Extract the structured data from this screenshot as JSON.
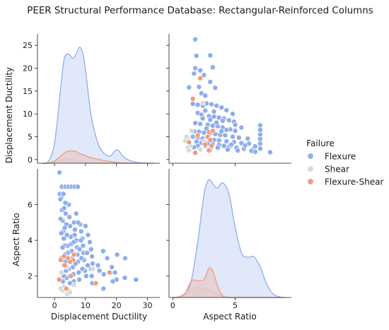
{
  "chart_data": {
    "type": "scatter",
    "title": "PEER Structural Performance Database: Rectangular-Reinforced Columns",
    "variables": [
      "Displacement Ductility",
      "Aspect Ratio"
    ],
    "legend": {
      "title": "Failure",
      "placement": "right",
      "entries": [
        {
          "label": "Flexure",
          "color": "#8fadee"
        },
        {
          "label": "Shear",
          "color": "#d9d9d9"
        },
        {
          "label": "Flexure-Shear",
          "color": "#ef9c7d"
        }
      ]
    },
    "axes": {
      "ductility": {
        "range": [
          -5.5,
          34
        ],
        "ticks": [
          0,
          10,
          20,
          30
        ],
        "tick_labels": [
          "0",
          "10",
          "20",
          "30"
        ],
        "diag_ticks": [
          0,
          5,
          10,
          15,
          20,
          25
        ],
        "diag_tick_labels": [
          "0",
          "5",
          "10",
          "15",
          "20",
          "25"
        ]
      },
      "aspect": {
        "range": [
          -0.3,
          9.5
        ],
        "ticks": [
          0,
          5
        ],
        "tick_labels": [
          "0",
          "5"
        ],
        "y_range": [
          0.8,
          8.0
        ],
        "y_ticks": [
          2,
          4,
          6
        ],
        "y_tick_labels": [
          "2",
          "4",
          "6"
        ]
      }
    },
    "kde": {
      "ductility": {
        "x": [
          -4,
          -2,
          0,
          2,
          3,
          4,
          5,
          6,
          7,
          8,
          9,
          10,
          11,
          12,
          14,
          16,
          18,
          19,
          20,
          21,
          22,
          24,
          26,
          28,
          30,
          32
        ],
        "flexure": [
          0.0,
          0.4,
          4.5,
          17,
          23,
          24.5,
          24.2,
          23.5,
          24.5,
          26,
          25,
          21,
          15,
          10,
          4.5,
          2.2,
          1.6,
          2.4,
          3.0,
          2.6,
          1.6,
          0.7,
          0.25,
          0.08,
          0.02,
          0.0
        ],
        "flexure_shear": [
          0.0,
          0.05,
          0.5,
          1.6,
          2.2,
          2.6,
          2.8,
          2.7,
          2.6,
          2.2,
          2.0,
          1.7,
          1.4,
          1.2,
          0.9,
          0.6,
          0.4,
          0.3,
          0.2,
          0.12,
          0.05,
          0.02,
          0.0,
          0.0,
          0.0,
          0.0
        ],
        "shear": [
          0.0,
          0.05,
          0.3,
          0.7,
          0.9,
          1.0,
          1.0,
          0.9,
          0.7,
          0.5,
          0.3,
          0.2,
          0.1,
          0.05,
          0.0,
          0.0,
          0.0,
          0.0,
          0.0,
          0.0,
          0.0,
          0.0,
          0.0,
          0.0,
          0.0,
          0.0
        ]
      },
      "aspect": {
        "x": [
          0.0,
          0.5,
          1.0,
          1.5,
          2.0,
          2.5,
          2.8,
          3.0,
          3.3,
          3.6,
          4.0,
          4.5,
          5.0,
          5.5,
          6.0,
          6.5,
          7.0,
          7.5,
          8.0,
          8.5,
          9.0
        ],
        "flexure": [
          0.0,
          0.06,
          0.7,
          3.2,
          10.0,
          18.5,
          20.8,
          21.0,
          20.0,
          19.6,
          20.5,
          18.5,
          12.5,
          8.0,
          7.2,
          7.3,
          5.5,
          2.5,
          0.7,
          0.15,
          0.0
        ],
        "flexure_shear": [
          0.0,
          0.05,
          0.8,
          3.0,
          3.0,
          3.2,
          4.8,
          5.3,
          4.2,
          2.0,
          0.3,
          0.0,
          0.0,
          0.0,
          0.0,
          0.0,
          0.0,
          0.0,
          0.0,
          0.0,
          0.0
        ],
        "shear": [
          0.0,
          0.2,
          0.8,
          1.6,
          1.8,
          1.6,
          1.4,
          1.2,
          0.9,
          0.5,
          0.2,
          0.05,
          0.0,
          0.0,
          0.0,
          0.0,
          0.0,
          0.0,
          0.0,
          0.0,
          0.0
        ]
      }
    },
    "points": {
      "Flexure": [
        [
          1.8,
          26.3
        ],
        [
          1.9,
          22.7
        ],
        [
          3.0,
          22.8
        ],
        [
          1.8,
          20.0
        ],
        [
          3.2,
          20.2
        ],
        [
          1.7,
          18.8
        ],
        [
          2.2,
          19.5
        ],
        [
          2.5,
          18.5
        ],
        [
          1.3,
          15.8
        ],
        [
          2.1,
          15.9
        ],
        [
          2.3,
          14.5
        ],
        [
          2.6,
          14.0
        ],
        [
          3.0,
          17.0
        ],
        [
          3.4,
          15.7
        ],
        [
          1.6,
          12.2
        ],
        [
          2.0,
          12.0
        ],
        [
          2.4,
          11.8
        ],
        [
          2.7,
          12.3
        ],
        [
          3.1,
          12.1
        ],
        [
          3.5,
          11.8
        ],
        [
          3.9,
          11.4
        ],
        [
          4.3,
          10.8
        ],
        [
          4.8,
          10.0
        ],
        [
          5.5,
          7.0
        ],
        [
          2.0,
          10.2
        ],
        [
          2.3,
          9.8
        ],
        [
          2.9,
          9.5
        ],
        [
          3.3,
          9.4
        ],
        [
          3.7,
          9.2
        ],
        [
          4.1,
          9.0
        ],
        [
          4.5,
          8.6
        ],
        [
          4.9,
          8.3
        ],
        [
          1.8,
          8.0
        ],
        [
          2.2,
          7.8
        ],
        [
          2.8,
          7.6
        ],
        [
          3.2,
          7.4
        ],
        [
          3.6,
          7.3
        ],
        [
          4.0,
          7.0
        ],
        [
          4.6,
          6.6
        ],
        [
          5.0,
          6.3
        ],
        [
          1.7,
          6.2
        ],
        [
          2.1,
          6.1
        ],
        [
          2.5,
          5.9
        ],
        [
          3.0,
          5.8
        ],
        [
          3.4,
          5.6
        ],
        [
          3.8,
          5.4
        ],
        [
          4.2,
          5.3
        ],
        [
          4.8,
          5.0
        ],
        [
          5.3,
          4.8
        ],
        [
          6.0,
          4.6
        ],
        [
          1.6,
          5.0
        ],
        [
          2.0,
          4.8
        ],
        [
          2.4,
          4.6
        ],
        [
          2.9,
          4.5
        ],
        [
          3.3,
          4.3
        ],
        [
          3.7,
          4.2
        ],
        [
          4.3,
          4.0
        ],
        [
          4.9,
          3.8
        ],
        [
          5.5,
          3.6
        ],
        [
          6.1,
          3.5
        ],
        [
          1.9,
          3.9
        ],
        [
          2.3,
          3.7
        ],
        [
          2.8,
          3.5
        ],
        [
          3.2,
          3.4
        ],
        [
          3.7,
          3.2
        ],
        [
          4.1,
          3.0
        ],
        [
          4.5,
          2.8
        ],
        [
          5.1,
          2.6
        ],
        [
          5.7,
          2.4
        ],
        [
          6.4,
          2.2
        ],
        [
          2.6,
          3.0
        ],
        [
          3.1,
          2.8
        ],
        [
          3.6,
          2.6
        ],
        [
          4.4,
          2.2
        ],
        [
          5.2,
          2.0
        ],
        [
          6.3,
          1.9
        ],
        [
          6.6,
          1.7
        ],
        [
          7.0,
          2.4
        ],
        [
          7.0,
          3.5
        ],
        [
          7.0,
          4.5
        ],
        [
          7.0,
          5.5
        ],
        [
          7.0,
          6.5
        ],
        [
          7.0,
          7.5
        ],
        [
          7.8,
          1.6
        ],
        [
          6.6,
          2.9
        ],
        [
          5.8,
          3.1
        ],
        [
          4.7,
          3.3
        ],
        [
          3.9,
          6.2
        ],
        [
          4.3,
          6.5
        ],
        [
          2.7,
          6.8
        ],
        [
          3.0,
          8.7
        ],
        [
          3.5,
          8.1
        ],
        [
          4.0,
          8.5
        ],
        [
          2.4,
          9.0
        ],
        [
          2.0,
          3.0
        ],
        [
          3.0,
          2.2
        ],
        [
          1.7,
          2.7
        ],
        [
          5.0,
          7.6
        ],
        [
          3.3,
          10.5
        ],
        [
          2.6,
          10.7
        ]
      ],
      "Flexure-Shear": [
        [
          2.2,
          17.8
        ],
        [
          1.6,
          13.3
        ],
        [
          2.9,
          6.0
        ],
        [
          2.8,
          5.0
        ],
        [
          3.0,
          4.3
        ],
        [
          2.6,
          3.3
        ],
        [
          3.1,
          3.0
        ],
        [
          1.3,
          3.8
        ],
        [
          1.8,
          1.5
        ],
        [
          2.9,
          2.0
        ],
        [
          2.0,
          5.3
        ],
        [
          3.2,
          6.3
        ]
      ],
      "Shear": [
        [
          2.4,
          12.4
        ],
        [
          1.2,
          4.5
        ],
        [
          1.4,
          3.0
        ],
        [
          1.0,
          4.1
        ],
        [
          1.2,
          2.6
        ],
        [
          2.2,
          2.2
        ],
        [
          1.1,
          5.0
        ],
        [
          1.5,
          6.3
        ],
        [
          2.5,
          4.0
        ],
        [
          1.3,
          2.0
        ]
      ]
    }
  }
}
